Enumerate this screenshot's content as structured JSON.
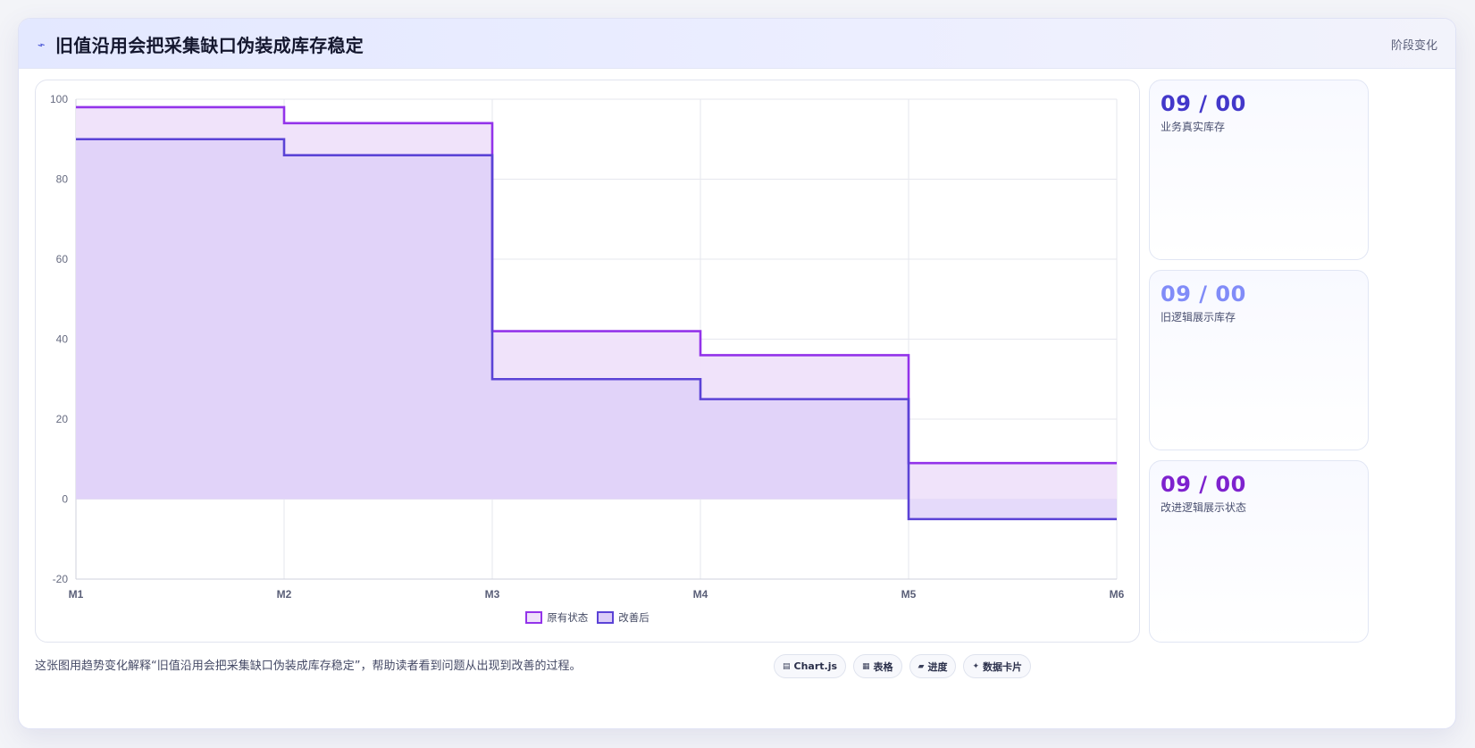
{
  "header": {
    "title": "旧值沿用会把采集缺口伪装成库存稳定",
    "title_icon": "trend-icon",
    "tag": "阶段变化"
  },
  "chart_data": {
    "type": "line",
    "stepped": true,
    "fill": true,
    "categories": [
      "M1",
      "M2",
      "M3",
      "M4",
      "M5",
      "M6"
    ],
    "ylim": [
      -20,
      100
    ],
    "yticks": [
      100,
      80,
      60,
      40,
      20,
      0,
      -20
    ],
    "grid": true,
    "legend_position": "bottom",
    "series": [
      {
        "name": "原有状态",
        "values": [
          98,
          94,
          42,
          36,
          9,
          9
        ],
        "color": "#9333ea",
        "fill": "#efe1fa"
      },
      {
        "name": "改善后",
        "values": [
          90,
          86,
          30,
          25,
          -5,
          -5
        ],
        "color": "#5b43d6",
        "fill": "#dccdf8"
      }
    ]
  },
  "stats": [
    {
      "value": "09 / 00",
      "label": "业务真实库存",
      "color": "#4338ca"
    },
    {
      "value": "09 / 00",
      "label": "旧逻辑展示库存",
      "color": "#818cf8"
    },
    {
      "value": "09 / 00",
      "label": "改进逻辑展示状态",
      "color": "#7e22ce"
    }
  ],
  "footer": {
    "caption": "这张图用趋势变化解释“旧值沿用会把采集缺口伪装成库存稳定”，帮助读者看到问题从出现到改善的过程。"
  },
  "chips": [
    {
      "icon": "▤",
      "label": "Chart.js"
    },
    {
      "icon": "▦",
      "label": "表格"
    },
    {
      "icon": "▰",
      "label": "进度"
    },
    {
      "icon": "✦",
      "label": "数据卡片"
    }
  ]
}
